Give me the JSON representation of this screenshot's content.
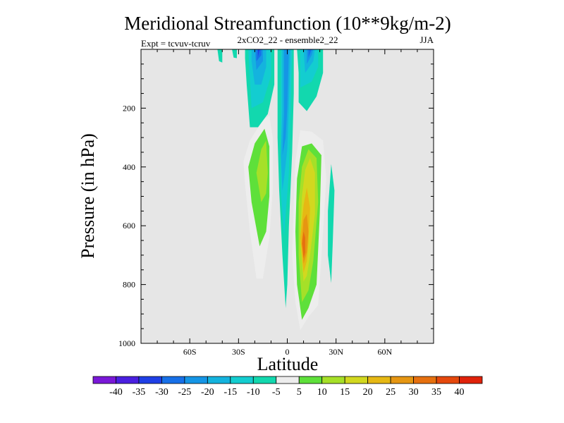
{
  "chart_data": {
    "type": "contour",
    "title": "Meridional Streamfunction (10**9kg/m-2)",
    "subtitle_left": "Expt = tcvuv-tcruv",
    "subtitle_center": "2xCO2_22 - ensemble2_22",
    "subtitle_right": "JJA",
    "xlabel": "Latitude",
    "ylabel": "Pressure (in hPa)",
    "xlim": [
      -90,
      90
    ],
    "ylim": [
      1000,
      0
    ],
    "x_ticks": [
      {
        "value": -60,
        "label": "60S"
      },
      {
        "value": -30,
        "label": "30S"
      },
      {
        "value": 0,
        "label": "0"
      },
      {
        "value": 30,
        "label": "30N"
      },
      {
        "value": 60,
        "label": "60N"
      }
    ],
    "y_ticks": [
      {
        "value": 200,
        "label": "200"
      },
      {
        "value": 400,
        "label": "400"
      },
      {
        "value": 600,
        "label": "600"
      },
      {
        "value": 800,
        "label": "800"
      },
      {
        "value": 1000,
        "label": "1000"
      }
    ],
    "background_color": "#e6e6e6",
    "colorbar": {
      "levels": [
        "-40",
        "-35",
        "-30",
        "-25",
        "-20",
        "-15",
        "-10",
        "-5",
        "5",
        "10",
        "15",
        "20",
        "25",
        "30",
        "35",
        "40"
      ],
      "colors": [
        "#7a18d8",
        "#4a1fe0",
        "#1f3fe6",
        "#1770e8",
        "#1595e6",
        "#14b3de",
        "#13cdd0",
        "#12d8ae",
        "#ededed",
        "#5ee03a",
        "#a6e028",
        "#d2d81f",
        "#e6b814",
        "#e69612",
        "#e6700f",
        "#e5480c",
        "#e0220a"
      ]
    },
    "regions": [
      {
        "level": 5,
        "points": [
          [
            -19,
            780
          ],
          [
            -23,
            620
          ],
          [
            -26,
            460
          ],
          [
            -27,
            380
          ],
          [
            -23,
            310
          ],
          [
            -15,
            240
          ],
          [
            -11,
            225
          ],
          [
            -9,
            300
          ],
          [
            -9,
            480
          ],
          [
            -11,
            640
          ],
          [
            -15,
            780
          ]
        ]
      },
      {
        "level": 10,
        "points": [
          [
            -17,
            670
          ],
          [
            -22,
            520
          ],
          [
            -24,
            400
          ],
          [
            -20,
            320
          ],
          [
            -14,
            270
          ],
          [
            -11,
            330
          ],
          [
            -11,
            500
          ],
          [
            -13,
            620
          ]
        ]
      },
      {
        "level": 15,
        "points": [
          [
            -16,
            520
          ],
          [
            -19,
            420
          ],
          [
            -16,
            340
          ],
          [
            -13,
            310
          ],
          [
            -12,
            420
          ],
          [
            -13,
            490
          ]
        ]
      },
      {
        "level": 5,
        "points": [
          [
            8,
            955
          ],
          [
            5,
            860
          ],
          [
            3,
            700
          ],
          [
            4,
            520
          ],
          [
            5,
            380
          ],
          [
            8,
            275
          ],
          [
            15,
            280
          ],
          [
            22,
            310
          ],
          [
            24,
            440
          ],
          [
            22,
            620
          ],
          [
            19,
            870
          ],
          [
            13,
            910
          ]
        ]
      },
      {
        "level": 10,
        "points": [
          [
            9,
            920
          ],
          [
            6,
            800
          ],
          [
            5,
            620
          ],
          [
            6,
            440
          ],
          [
            9,
            330
          ],
          [
            15,
            320
          ],
          [
            21,
            360
          ],
          [
            20,
            560
          ],
          [
            18,
            800
          ],
          [
            13,
            880
          ]
        ]
      },
      {
        "level": 15,
        "points": [
          [
            9,
            860
          ],
          [
            7,
            700
          ],
          [
            7,
            520
          ],
          [
            9,
            400
          ],
          [
            13,
            340
          ],
          [
            18,
            370
          ],
          [
            19,
            520
          ],
          [
            16,
            720
          ],
          [
            13,
            820
          ]
        ]
      },
      {
        "level": 20,
        "points": [
          [
            10,
            790
          ],
          [
            8,
            650
          ],
          [
            9,
            500
          ],
          [
            11,
            410
          ],
          [
            14,
            370
          ],
          [
            17,
            420
          ],
          [
            17,
            560
          ],
          [
            14,
            700
          ],
          [
            12,
            770
          ]
        ]
      },
      {
        "level": 25,
        "points": [
          [
            10,
            760
          ],
          [
            8,
            640
          ],
          [
            10,
            530
          ],
          [
            12,
            470
          ],
          [
            14,
            540
          ],
          [
            13,
            660
          ],
          [
            12,
            720
          ]
        ]
      },
      {
        "level": 30,
        "points": [
          [
            10,
            730
          ],
          [
            9,
            650
          ],
          [
            10,
            580
          ],
          [
            12,
            560
          ],
          [
            13,
            620
          ],
          [
            12,
            690
          ]
        ]
      },
      {
        "level": 35,
        "points": [
          [
            10,
            710
          ],
          [
            9,
            660
          ],
          [
            10,
            620
          ],
          [
            11,
            640
          ],
          [
            11,
            690
          ]
        ]
      },
      {
        "level": -5,
        "points": [
          [
            -42,
            40
          ],
          [
            -43,
            0
          ],
          [
            -40,
            0
          ],
          [
            -40,
            45
          ]
        ]
      },
      {
        "level": -5,
        "points": [
          [
            -33,
            28
          ],
          [
            -34,
            0
          ],
          [
            -31,
            0
          ],
          [
            -31,
            30
          ]
        ]
      },
      {
        "level": -5,
        "points": [
          [
            -23,
            265
          ],
          [
            -25,
            120
          ],
          [
            -26,
            30
          ],
          [
            -26,
            0
          ],
          [
            -8,
            0
          ],
          [
            -8,
            120
          ],
          [
            -12,
            220
          ],
          [
            -18,
            265
          ]
        ]
      },
      {
        "level": -10,
        "points": [
          [
            -22,
            200
          ],
          [
            -23,
            100
          ],
          [
            -24,
            0
          ],
          [
            -10,
            0
          ],
          [
            -10,
            90
          ],
          [
            -15,
            180
          ]
        ]
      },
      {
        "level": -15,
        "points": [
          [
            -20,
            120
          ],
          [
            -22,
            40
          ],
          [
            -22,
            0
          ],
          [
            -13,
            0
          ],
          [
            -13,
            60
          ],
          [
            -16,
            120
          ]
        ]
      },
      {
        "level": -20,
        "points": [
          [
            -19,
            70
          ],
          [
            -20,
            0
          ],
          [
            -15,
            0
          ],
          [
            -15,
            40
          ]
        ]
      },
      {
        "level": -25,
        "points": [
          [
            -19,
            40
          ],
          [
            -19,
            0
          ],
          [
            -16,
            0
          ],
          [
            -16,
            20
          ]
        ]
      },
      {
        "level": -30,
        "points": [
          [
            -18,
            25
          ],
          [
            -18,
            0
          ],
          [
            -17,
            0
          ]
        ]
      },
      {
        "level": -5,
        "points": [
          [
            -1,
            880
          ],
          [
            -3,
            700
          ],
          [
            -5,
            480
          ],
          [
            -6,
            300
          ],
          [
            -6,
            0
          ],
          [
            4,
            0
          ],
          [
            4,
            150
          ],
          [
            3,
            350
          ],
          [
            1,
            600
          ],
          [
            0,
            800
          ]
        ]
      },
      {
        "level": -10,
        "points": [
          [
            -2,
            640
          ],
          [
            -4,
            480
          ],
          [
            -4,
            300
          ],
          [
            -4,
            0
          ],
          [
            3,
            0
          ],
          [
            2,
            200
          ],
          [
            1,
            420
          ],
          [
            -1,
            560
          ]
        ]
      },
      {
        "level": -15,
        "points": [
          [
            -3,
            480
          ],
          [
            -4,
            360
          ],
          [
            -3,
            200
          ],
          [
            -3,
            0
          ],
          [
            2,
            0
          ],
          [
            1,
            180
          ],
          [
            0,
            340
          ],
          [
            -2,
            440
          ]
        ]
      },
      {
        "level": -20,
        "points": [
          [
            -3,
            360
          ],
          [
            -2,
            220
          ],
          [
            -2,
            0
          ],
          [
            1,
            0
          ],
          [
            0,
            200
          ],
          [
            -1,
            300
          ]
        ]
      },
      {
        "level": -5,
        "points": [
          [
            7,
            180
          ],
          [
            7,
            80
          ],
          [
            6,
            0
          ],
          [
            22,
            0
          ],
          [
            22,
            80
          ],
          [
            18,
            160
          ],
          [
            12,
            210
          ]
        ]
      },
      {
        "level": -10,
        "points": [
          [
            8,
            130
          ],
          [
            8,
            40
          ],
          [
            8,
            0
          ],
          [
            19,
            0
          ],
          [
            19,
            60
          ],
          [
            15,
            110
          ]
        ]
      },
      {
        "level": -15,
        "points": [
          [
            11,
            80
          ],
          [
            10,
            0
          ],
          [
            17,
            0
          ],
          [
            16,
            40
          ]
        ]
      },
      {
        "level": -20,
        "points": [
          [
            12,
            50
          ],
          [
            12,
            0
          ],
          [
            16,
            0
          ],
          [
            15,
            20
          ]
        ]
      },
      {
        "level": -25,
        "points": [
          [
            13,
            28
          ],
          [
            13,
            0
          ],
          [
            15,
            0
          ]
        ]
      },
      {
        "level": -5,
        "points": [
          [
            27,
            795
          ],
          [
            25,
            700
          ],
          [
            25,
            550
          ],
          [
            27,
            390
          ],
          [
            29,
            480
          ],
          [
            28,
            650
          ]
        ]
      }
    ]
  }
}
